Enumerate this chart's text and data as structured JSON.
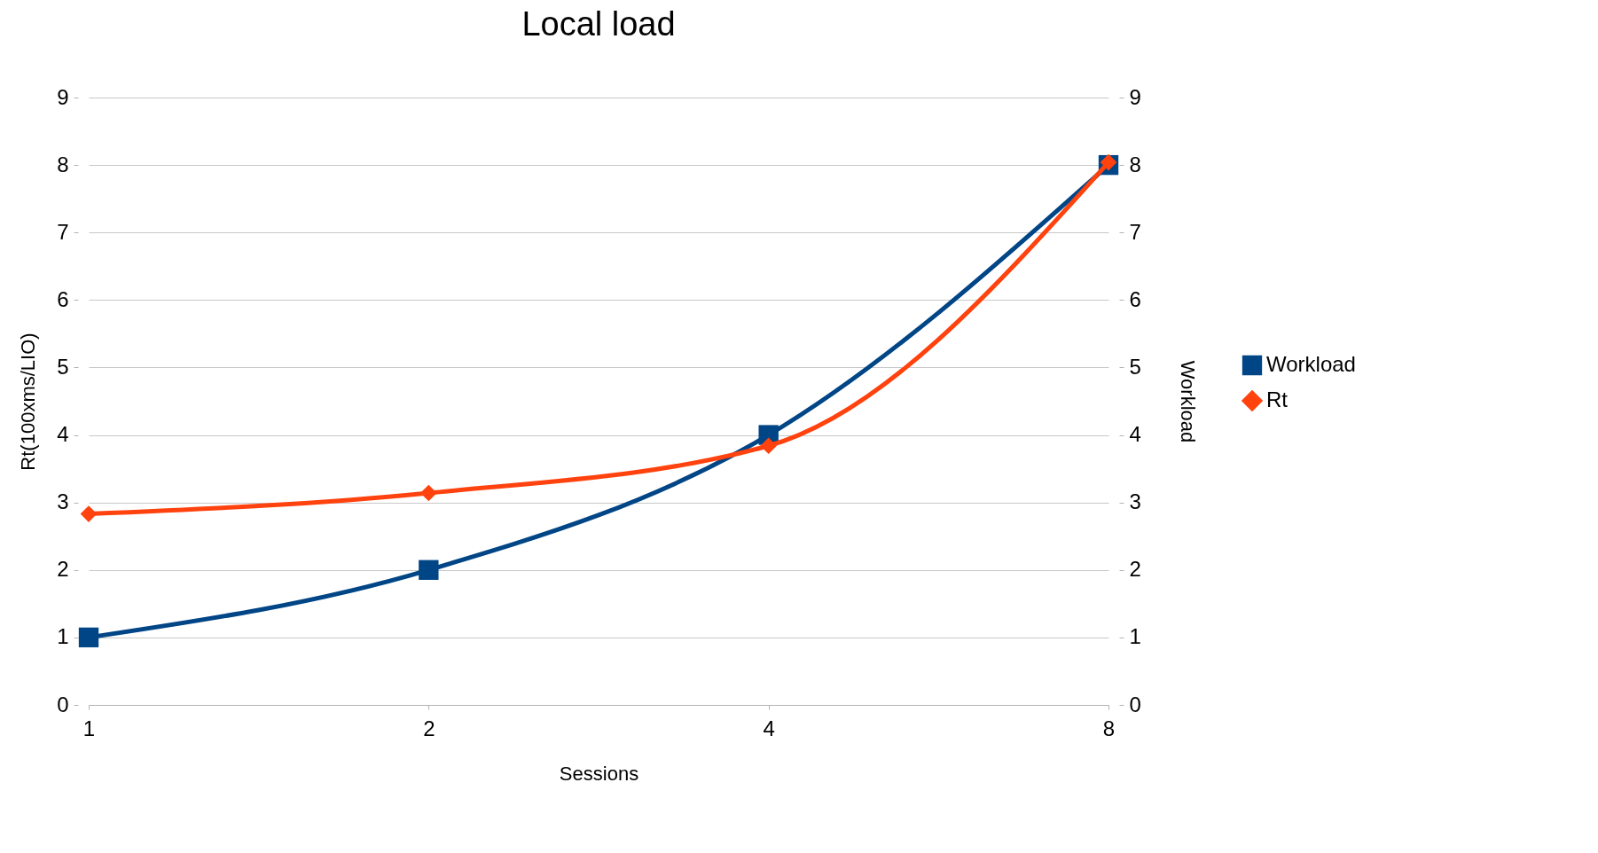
{
  "chart_data": {
    "type": "line",
    "title": "Local load",
    "xlabel": "Sessions",
    "ylabel": "Rt(100xms/LIO)",
    "y2label": "Workload",
    "categories": [
      "1",
      "2",
      "4",
      "8"
    ],
    "series": [
      {
        "name": "Workload",
        "color": "#004586",
        "values": [
          1,
          2,
          4,
          8
        ],
        "axis": "y2",
        "marker": "square"
      },
      {
        "name": "Rt",
        "color": "#ff420e",
        "values": [
          2.83,
          3.14,
          3.84,
          8.04
        ],
        "marker": "diamond"
      }
    ],
    "ylim": [
      0,
      9
    ],
    "yticks": [
      0,
      1,
      2,
      3,
      4,
      5,
      6,
      7,
      8,
      9
    ],
    "y2lim": [
      0,
      9
    ],
    "y2ticks": [
      0,
      1,
      2,
      3,
      4,
      5,
      6,
      7,
      8,
      9
    ],
    "grid": "y",
    "legend": "right"
  }
}
